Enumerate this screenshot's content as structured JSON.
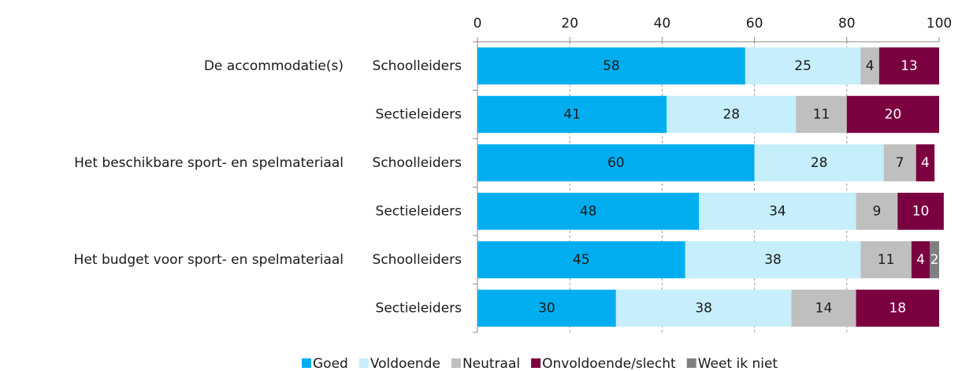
{
  "chart_data": {
    "type": "stacked-barh",
    "categories": [
      "Schoolleiders",
      "Sectieleiders",
      "Schoolleiders",
      "Sectieleiders",
      "Schoolleiders",
      "Sectieleiders"
    ],
    "groups": [
      "De accommodatie(s)",
      "Het beschikbare sport- en spelmateriaal",
      "Het budget voor sport- en spelmateriaal"
    ],
    "series": [
      {
        "name": "Goed",
        "color": "#00aeef",
        "label_color": "#1a1a1a",
        "values": [
          58,
          41,
          60,
          48,
          45,
          30
        ]
      },
      {
        "name": "Voldoende",
        "color": "#c6eefb",
        "label_color": "#1a1a1a",
        "values": [
          25,
          28,
          28,
          34,
          38,
          38
        ]
      },
      {
        "name": "Neutraal",
        "color": "#bfbfbf",
        "label_color": "#1a1a1a",
        "values": [
          4,
          11,
          7,
          9,
          11,
          14
        ]
      },
      {
        "name": "Onvoldoende/slecht",
        "color": "#7b0040",
        "label_color": "#ffffff",
        "values": [
          13,
          20,
          4,
          10,
          4,
          18
        ]
      },
      {
        "name": "Weet ik niet",
        "color": "#808080",
        "label_color": "#ffffff",
        "values": [
          0,
          0,
          0,
          0,
          2,
          0
        ]
      }
    ],
    "xlim": [
      0,
      100
    ],
    "xticks": [
      0,
      20,
      40,
      60,
      80,
      100
    ],
    "grid": true,
    "legend": "bottom"
  }
}
